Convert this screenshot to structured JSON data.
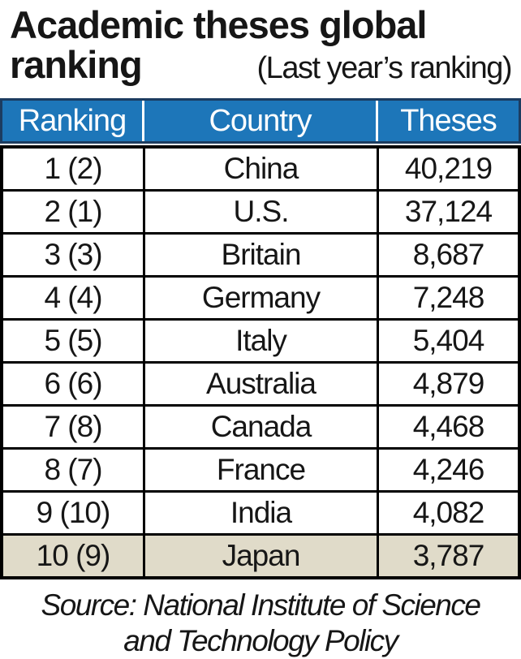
{
  "title": {
    "line1": "Academic theses global",
    "line2_bold": "ranking",
    "line2_note": "(Last year’s ranking)"
  },
  "colors": {
    "header_bg": "#1d76b9",
    "header_border": "#1c3c60",
    "header_text": "#ffffff",
    "body_border": "#000000",
    "highlight_bg": "#e0dbc9"
  },
  "table": {
    "columns": [
      "Ranking",
      "Country",
      "Theses"
    ],
    "rows": [
      {
        "ranking": "1  (2)",
        "country": "China",
        "theses": "40,219",
        "highlight": false
      },
      {
        "ranking": "2  (1)",
        "country": "U.S.",
        "theses": "37,124",
        "highlight": false
      },
      {
        "ranking": "3  (3)",
        "country": "Britain",
        "theses": "8,687",
        "highlight": false
      },
      {
        "ranking": "4  (4)",
        "country": "Germany",
        "theses": "7,248",
        "highlight": false
      },
      {
        "ranking": "5  (5)",
        "country": "Italy",
        "theses": "5,404",
        "highlight": false
      },
      {
        "ranking": "6  (6)",
        "country": "Australia",
        "theses": "4,879",
        "highlight": false
      },
      {
        "ranking": "7  (8)",
        "country": "Canada",
        "theses": "4,468",
        "highlight": false
      },
      {
        "ranking": "8  (7)",
        "country": "France",
        "theses": "4,246",
        "highlight": false
      },
      {
        "ranking": "9 (10)",
        "country": "India",
        "theses": "4,082",
        "highlight": false
      },
      {
        "ranking": "10 (9)",
        "country": "Japan",
        "theses": "3,787",
        "highlight": true
      }
    ]
  },
  "source": {
    "line1": "Source: National Institute of Science",
    "line2": "and Technology Policy"
  },
  "chart_data": {
    "type": "table",
    "title": "Academic theses global ranking",
    "subtitle": "(Last year’s ranking)",
    "columns": [
      "Ranking",
      "Country",
      "Theses"
    ],
    "rows": [
      {
        "rank": 1,
        "last_year_rank": 2,
        "country": "China",
        "theses": 40219
      },
      {
        "rank": 2,
        "last_year_rank": 1,
        "country": "U.S.",
        "theses": 37124
      },
      {
        "rank": 3,
        "last_year_rank": 3,
        "country": "Britain",
        "theses": 8687
      },
      {
        "rank": 4,
        "last_year_rank": 4,
        "country": "Germany",
        "theses": 7248
      },
      {
        "rank": 5,
        "last_year_rank": 5,
        "country": "Italy",
        "theses": 5404
      },
      {
        "rank": 6,
        "last_year_rank": 6,
        "country": "Australia",
        "theses": 4879
      },
      {
        "rank": 7,
        "last_year_rank": 8,
        "country": "Canada",
        "theses": 4468
      },
      {
        "rank": 8,
        "last_year_rank": 7,
        "country": "France",
        "theses": 4246
      },
      {
        "rank": 9,
        "last_year_rank": 10,
        "country": "India",
        "theses": 4082
      },
      {
        "rank": 10,
        "last_year_rank": 9,
        "country": "Japan",
        "theses": 3787
      }
    ],
    "highlighted_row": "Japan",
    "source": "National Institute of Science and Technology Policy"
  }
}
